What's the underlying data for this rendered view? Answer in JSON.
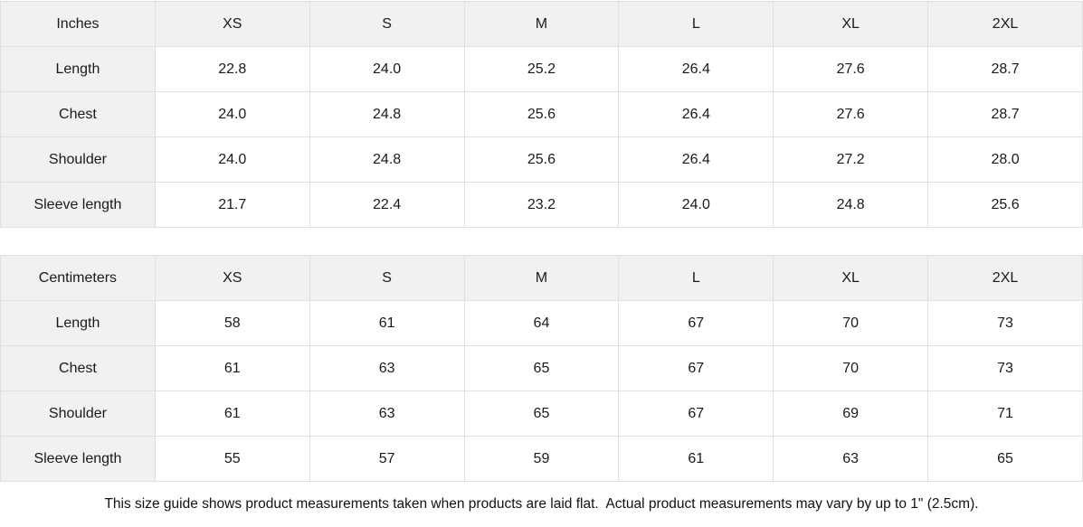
{
  "colors": {
    "header_bg": "#f1f1f1",
    "cell_bg": "#ffffff",
    "border": "#e0e0e0",
    "text": "#1a1a1a"
  },
  "tables": [
    {
      "unit_label": "Inches",
      "columns": [
        "XS",
        "S",
        "M",
        "L",
        "XL",
        "2XL"
      ],
      "rows": [
        {
          "label": "Length",
          "values": [
            "22.8",
            "24.0",
            "25.2",
            "26.4",
            "27.6",
            "28.7"
          ]
        },
        {
          "label": "Chest",
          "values": [
            "24.0",
            "24.8",
            "25.6",
            "26.4",
            "27.6",
            "28.7"
          ]
        },
        {
          "label": "Shoulder",
          "values": [
            "24.0",
            "24.8",
            "25.6",
            "26.4",
            "27.2",
            "28.0"
          ]
        },
        {
          "label": "Sleeve length",
          "values": [
            "21.7",
            "22.4",
            "23.2",
            "24.0",
            "24.8",
            "25.6"
          ]
        }
      ]
    },
    {
      "unit_label": "Centimeters",
      "columns": [
        "XS",
        "S",
        "M",
        "L",
        "XL",
        "2XL"
      ],
      "rows": [
        {
          "label": "Length",
          "values": [
            "58",
            "61",
            "64",
            "67",
            "70",
            "73"
          ]
        },
        {
          "label": "Chest",
          "values": [
            "61",
            "63",
            "65",
            "67",
            "70",
            "73"
          ]
        },
        {
          "label": "Shoulder",
          "values": [
            "61",
            "63",
            "65",
            "67",
            "69",
            "71"
          ]
        },
        {
          "label": "Sleeve length",
          "values": [
            "55",
            "57",
            "59",
            "61",
            "63",
            "65"
          ]
        }
      ]
    }
  ],
  "footer": {
    "note": "This size guide shows product measurements taken when products are laid flat.  Actual product measurements may vary by up to 1\" (2.5cm)."
  }
}
